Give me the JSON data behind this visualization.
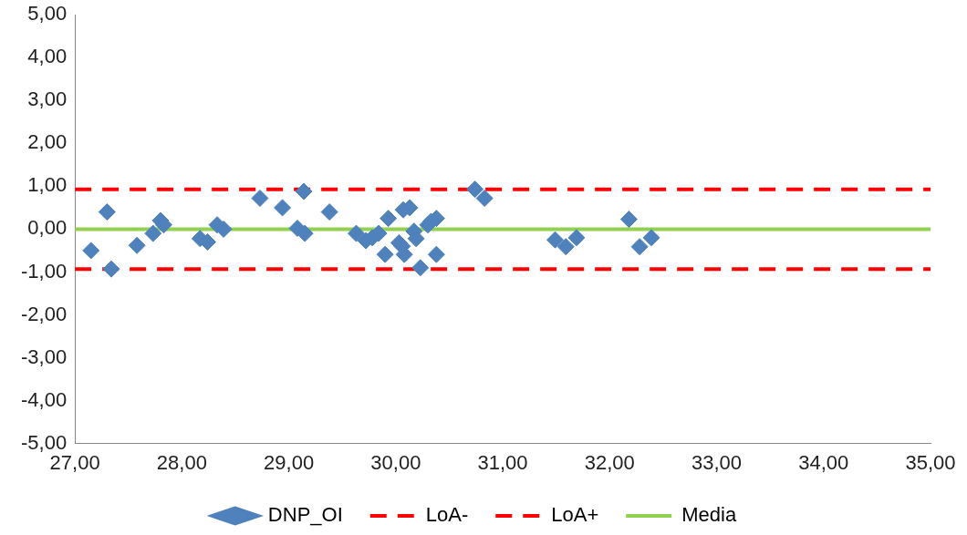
{
  "chart_data": {
    "type": "scatter",
    "xlim": [
      27,
      35
    ],
    "xticks": [
      {
        "value": 27,
        "label": "27,00"
      },
      {
        "value": 28,
        "label": "28,00"
      },
      {
        "value": 29,
        "label": "29,00"
      },
      {
        "value": 30,
        "label": "30,00"
      },
      {
        "value": 31,
        "label": "31,00"
      },
      {
        "value": 32,
        "label": "32,00"
      },
      {
        "value": 33,
        "label": "33,00"
      },
      {
        "value": 34,
        "label": "34,00"
      },
      {
        "value": 35,
        "label": "35,00"
      }
    ],
    "ylim": [
      -5,
      5
    ],
    "yticks": [
      {
        "value": -5,
        "label": "-5,00"
      },
      {
        "value": -4,
        "label": "-4,00"
      },
      {
        "value": -3,
        "label": "-3,00"
      },
      {
        "value": -2,
        "label": "-2,00"
      },
      {
        "value": -1,
        "label": "-1,00"
      },
      {
        "value": 0,
        "label": "0,00"
      },
      {
        "value": 1,
        "label": "1,00"
      },
      {
        "value": 2,
        "label": "2,00"
      },
      {
        "value": 3,
        "label": "3,00"
      },
      {
        "value": 4,
        "label": "4,00"
      },
      {
        "value": 5,
        "label": "5,00"
      }
    ],
    "grid": false,
    "legend": "bottom",
    "series": [
      {
        "name": "DNP_OI",
        "marker": "diamond",
        "color": "#4f81bd",
        "x": [
          27.15,
          27.3,
          27.34,
          27.58,
          27.73,
          27.8,
          27.83,
          28.17,
          28.24,
          28.33,
          28.39,
          28.73,
          28.94,
          29.14,
          29.08,
          29.15,
          29.38,
          29.63,
          29.72,
          29.78,
          29.84,
          29.9,
          29.93,
          30.03,
          30.06,
          30.08,
          30.07,
          30.13,
          30.17,
          30.19,
          30.23,
          30.3,
          30.33,
          30.38,
          30.38,
          30.74,
          30.83,
          31.49,
          31.59,
          31.69,
          32.18,
          32.28,
          32.39
        ],
        "values": [
          -0.5,
          0.4,
          -0.93,
          -0.38,
          -0.1,
          0.2,
          0.1,
          -0.22,
          -0.3,
          0.1,
          0,
          0.72,
          0.5,
          0.88,
          0.02,
          -0.1,
          0.4,
          -0.1,
          -0.27,
          -0.2,
          -0.1,
          -0.59,
          0.25,
          -0.32,
          -0.4,
          -0.59,
          0.45,
          0.5,
          -0.05,
          -0.22,
          -0.9,
          0.1,
          0.18,
          0.25,
          -0.59,
          0.93,
          0.72,
          -0.25,
          -0.41,
          -0.2,
          0.23,
          -0.41,
          -0.2
        ]
      },
      {
        "name": "LoA-",
        "type": "line",
        "marker": "none",
        "line_style": "dashed",
        "color": "#ff0000",
        "x": [
          27,
          35
        ],
        "values": [
          -0.93,
          -0.93
        ]
      },
      {
        "name": "LoA+",
        "type": "line",
        "marker": "none",
        "line_style": "dashed",
        "color": "#ff0000",
        "x": [
          27,
          35
        ],
        "values": [
          0.93,
          0.93
        ]
      },
      {
        "name": "Media",
        "type": "line",
        "marker": "none",
        "line_style": "solid",
        "color": "#92d050",
        "x": [
          27,
          35
        ],
        "values": [
          0,
          0
        ]
      }
    ]
  }
}
